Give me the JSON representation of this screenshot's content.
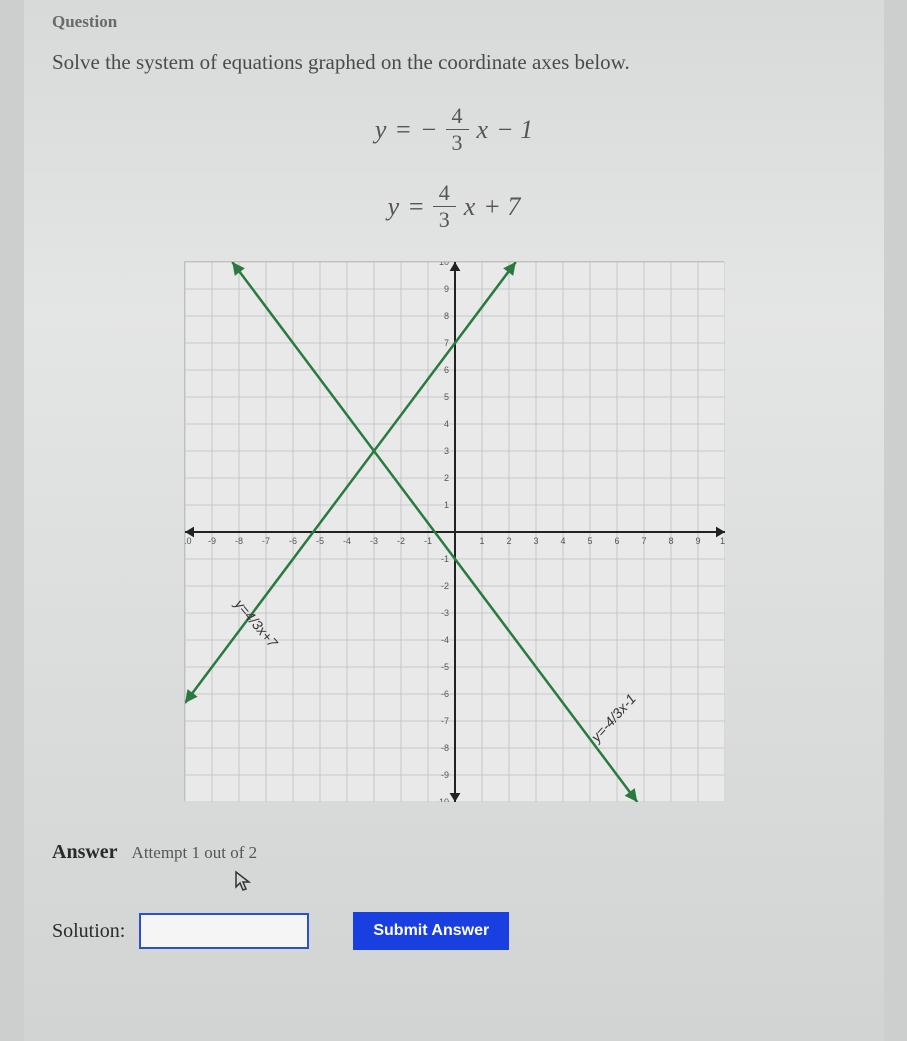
{
  "header": {
    "question_label": "Question"
  },
  "prompt": "Solve the system of equations graphed on the coordinate axes below.",
  "equations": {
    "eq1": {
      "lhs": "y",
      "eq": "=",
      "neg": "−",
      "num": "4",
      "den": "3",
      "x": "x",
      "tail": "− 1"
    },
    "eq2": {
      "lhs": "y",
      "eq": "=",
      "num": "4",
      "den": "3",
      "x": "x",
      "tail": "+ 7"
    }
  },
  "chart": {
    "type": "line",
    "xlim": [
      -10,
      10
    ],
    "ylim": [
      -10,
      10
    ],
    "tick_step": 1,
    "background_color": "#e8e9e8",
    "grid_color": "#bfbfbf",
    "axis_color": "#222222",
    "tick_label_color": "#555555",
    "tick_fontsize": 9,
    "lines": [
      {
        "label": "y=4/3x+7",
        "slope": 1.3333333,
        "intercept": 7,
        "color": "#2a7a3f",
        "width": 2.5,
        "label_pos": {
          "x": -7.5,
          "y": -3.5,
          "angle": 50
        }
      },
      {
        "label": "y=-4/3x-1",
        "slope": -1.3333333,
        "intercept": -1,
        "color": "#2a7a3f",
        "width": 2.5,
        "label_pos": {
          "x": 6,
          "y": -7,
          "angle": -48
        }
      }
    ],
    "arrow_size": 9
  },
  "answer": {
    "label": "Answer",
    "attempt": "Attempt 1 out of 2",
    "solution_label": "Solution:",
    "solution_value": "",
    "solution_placeholder": "",
    "submit_label": "Submit Answer"
  }
}
